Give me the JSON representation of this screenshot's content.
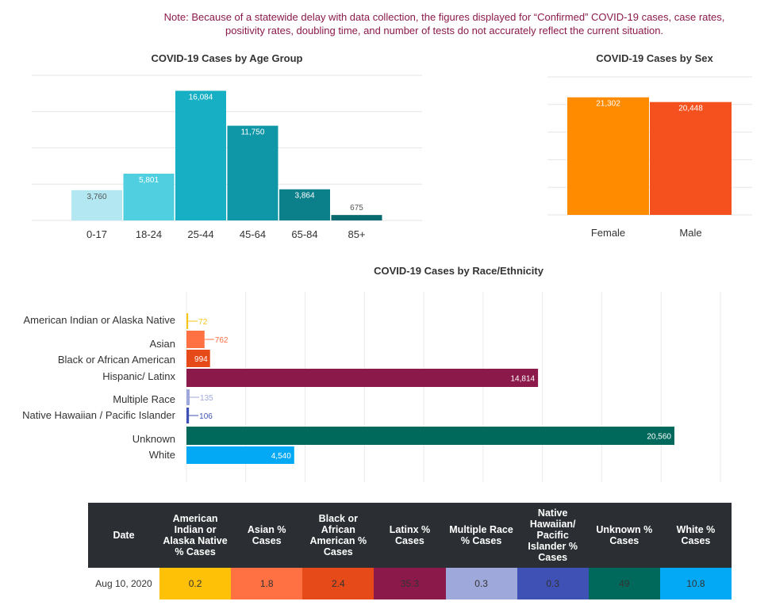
{
  "note": "Note: Because of a statewide delay with data collection, the figures displayed for “Confirmed” COVID-19 cases, case rates, positivity rates, doubling time, and number of tests do not accurately reflect the current situation.",
  "chart_data": [
    {
      "type": "bar",
      "title": "COVID-19 Cases by Age Group",
      "categories": [
        "0-17",
        "18-24",
        "25-44",
        "45-64",
        "65-84",
        "85+"
      ],
      "values": [
        3760,
        5801,
        16084,
        11750,
        3864,
        675
      ],
      "value_labels": [
        "3,760",
        "5,801",
        "16,084",
        "11,750",
        "3,864",
        "675"
      ],
      "colors": [
        "#b3e8f2",
        "#4fcfdf",
        "#16afc4",
        "#0f97a8",
        "#0b7f8a",
        "#076a70"
      ],
      "ylim": [
        0,
        18000
      ],
      "grid": true,
      "xlabel": "",
      "ylabel": ""
    },
    {
      "type": "bar",
      "title": "COVID-19 Cases by Sex",
      "categories": [
        "Female",
        "Male"
      ],
      "values": [
        21302,
        20448
      ],
      "value_labels": [
        "21,302",
        "20,448"
      ],
      "colors": [
        "#ff8c00",
        "#f4511e"
      ],
      "ylim": [
        0,
        25000
      ],
      "grid": true,
      "xlabel": "",
      "ylabel": ""
    },
    {
      "type": "bar",
      "orientation": "horizontal",
      "title": "COVID-19 Cases by Race/Ethnicity",
      "categories": [
        "American Indian or Alaska Native",
        "Asian",
        "Black or African American",
        "Hispanic/ Latinx",
        "Multiple Race",
        "Native Hawaiian / Pacific Islander",
        "Unknown",
        "White"
      ],
      "values": [
        72,
        762,
        994,
        14814,
        135,
        106,
        20560,
        4540
      ],
      "value_labels": [
        "72",
        "762",
        "994",
        "14,814",
        "135",
        "106",
        "20,560",
        "4,540"
      ],
      "colors": [
        "#f5c518",
        "#ff7043",
        "#e64a19",
        "#8b1a4a",
        "#9fa8da",
        "#3f51b5",
        "#00695c",
        "#03a9f4"
      ],
      "xlim": [
        0,
        22500
      ],
      "grid": true,
      "xlabel": "",
      "ylabel": ""
    },
    {
      "type": "table",
      "headers": [
        "Date",
        "American Indian or Alaska Native % Cases",
        "Asian % Cases",
        "Black or African American % Cases",
        "Latinx % Cases",
        "Multiple Race % Cases",
        "Native Hawaiian/ Pacific Islander % Cases",
        "Unknown % Cases",
        "White % Cases"
      ],
      "rows": [
        [
          "Aug 10, 2020",
          "0.2",
          "1.8",
          "2.4",
          "35.3",
          "0.3",
          "0.3",
          "49",
          "10.8"
        ]
      ]
    }
  ],
  "table": {
    "headers": [
      "Date",
      "American Indian or Alaska Native % Cases",
      "Asian % Cases",
      "Black or African American % Cases",
      "Latinx % Cases",
      "Multiple Race % Cases",
      "Native Hawaiian/ Pacific Islander % Cases",
      "Unknown % Cases",
      "White % Cases"
    ],
    "date": "Aug 10, 2020",
    "values": [
      "0.2",
      "1.8",
      "2.4",
      "35.3",
      "0.3",
      "0.3",
      "49",
      "10.8"
    ],
    "colors": [
      "#ffc107",
      "#ff7043",
      "#e64a19",
      "#8b1a4a",
      "#9fa8da",
      "#3f51b5",
      "#00695c",
      "#03a9f4"
    ]
  }
}
